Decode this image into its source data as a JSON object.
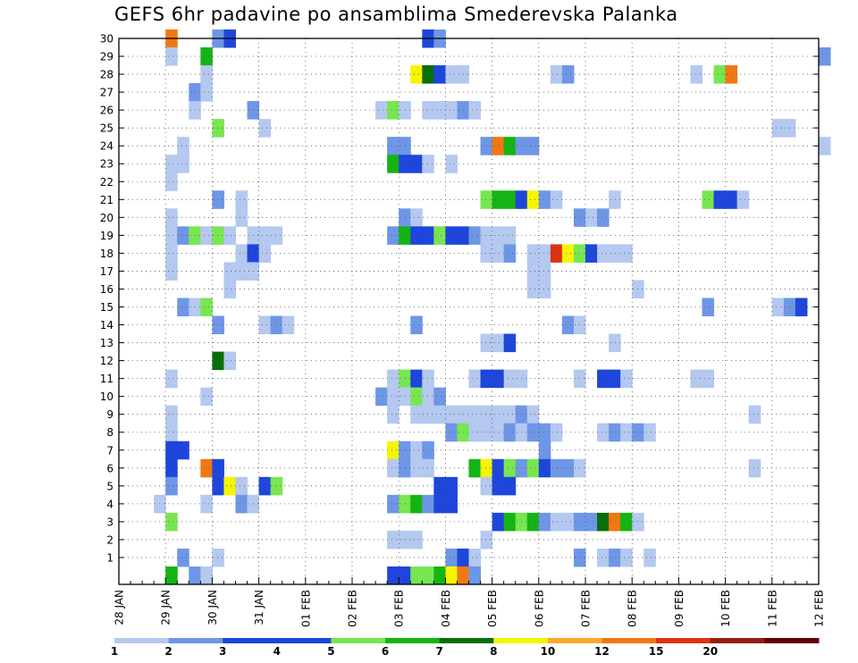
{
  "chart_data": {
    "type": "heatmap",
    "title": "GEFS 6hr padavine po ansamblima Smederevska Palanka",
    "xlabel": "",
    "ylabel": "",
    "x_tick_labels": [
      "28 JAN",
      "29 JAN",
      "30 JAN",
      "31 JAN",
      "01 FEB",
      "02 FEB",
      "03 FEB",
      "04 FEB",
      "05 FEB",
      "06 FEB",
      "07 FEB",
      "08 FEB",
      "09 FEB",
      "10 FEB",
      "11 FEB",
      "12 FEB"
    ],
    "x_range_steps": [
      0,
      60
    ],
    "steps_per_day": 4,
    "y_tick_labels": [
      "1",
      "2",
      "3",
      "4",
      "5",
      "6",
      "7",
      "8",
      "9",
      "10",
      "11",
      "12",
      "13",
      "14",
      "15",
      "16",
      "17",
      "18",
      "19",
      "20",
      "21",
      "22",
      "23",
      "24",
      "25",
      "26",
      "27",
      "28",
      "29",
      "30"
    ],
    "y_range": [
      0,
      30
    ],
    "grid": true,
    "legend_placement": "bottom",
    "color_classes": [
      {
        "label": "1",
        "color": "#b4c8f0"
      },
      {
        "label": "2",
        "color": "#6e96e6"
      },
      {
        "label": "3",
        "color": "#1e46dc"
      },
      {
        "label": "4",
        "color": "#1e46dc"
      },
      {
        "label": "5",
        "color": "#78e650"
      },
      {
        "label": "6",
        "color": "#14b414"
      },
      {
        "label": "7",
        "color": "#0a6e0a"
      },
      {
        "label": "8",
        "color": "#f5f500"
      },
      {
        "label": "10",
        "color": "#faaa32"
      },
      {
        "label": "12",
        "color": "#f07814"
      },
      {
        "label": "15",
        "color": "#dc3214"
      },
      {
        "label": "20",
        "color": "#961e14"
      },
      {
        "label": "",
        "color": "#64000a"
      }
    ],
    "cells_note": "each cell = [member, step, class]; step is 6-hour index from 28 JAN 00Z; class indexes color_classes",
    "cells": [
      [
        30,
        4,
        9
      ],
      [
        30,
        8,
        1
      ],
      [
        30,
        9,
        2
      ],
      [
        30,
        26,
        2
      ],
      [
        30,
        27,
        1
      ],
      [
        29,
        4,
        0
      ],
      [
        29,
        7,
        5
      ],
      [
        29,
        60,
        1
      ],
      [
        28,
        7,
        0
      ],
      [
        28,
        25,
        7
      ],
      [
        28,
        26,
        6
      ],
      [
        28,
        27,
        2
      ],
      [
        28,
        28,
        0
      ],
      [
        28,
        29,
        0
      ],
      [
        28,
        37,
        0
      ],
      [
        28,
        38,
        1
      ],
      [
        28,
        49,
        0
      ],
      [
        28,
        51,
        4
      ],
      [
        28,
        52,
        9
      ],
      [
        27,
        6,
        1
      ],
      [
        27,
        7,
        0
      ],
      [
        26,
        6,
        0
      ],
      [
        26,
        11,
        1
      ],
      [
        26,
        22,
        0
      ],
      [
        26,
        23,
        4
      ],
      [
        26,
        24,
        0
      ],
      [
        26,
        26,
        0
      ],
      [
        26,
        27,
        0
      ],
      [
        26,
        28,
        0
      ],
      [
        26,
        29,
        1
      ],
      [
        26,
        30,
        0
      ],
      [
        25,
        8,
        4
      ],
      [
        25,
        12,
        0
      ],
      [
        25,
        56,
        0
      ],
      [
        25,
        57,
        0
      ],
      [
        24,
        5,
        0
      ],
      [
        24,
        23,
        1
      ],
      [
        24,
        24,
        1
      ],
      [
        24,
        31,
        1
      ],
      [
        24,
        32,
        9
      ],
      [
        24,
        33,
        5
      ],
      [
        24,
        34,
        1
      ],
      [
        24,
        35,
        1
      ],
      [
        24,
        60,
        0
      ],
      [
        23,
        4,
        0
      ],
      [
        23,
        5,
        0
      ],
      [
        23,
        23,
        5
      ],
      [
        23,
        24,
        2
      ],
      [
        23,
        25,
        2
      ],
      [
        23,
        26,
        0
      ],
      [
        23,
        28,
        0
      ],
      [
        22,
        4,
        0
      ],
      [
        21,
        8,
        1
      ],
      [
        21,
        10,
        0
      ],
      [
        21,
        31,
        4
      ],
      [
        21,
        32,
        5
      ],
      [
        21,
        33,
        5
      ],
      [
        21,
        34,
        2
      ],
      [
        21,
        35,
        7
      ],
      [
        21,
        36,
        1
      ],
      [
        21,
        37,
        0
      ],
      [
        21,
        42,
        0
      ],
      [
        21,
        50,
        4
      ],
      [
        21,
        51,
        2
      ],
      [
        21,
        52,
        2
      ],
      [
        21,
        53,
        0
      ],
      [
        20,
        4,
        0
      ],
      [
        20,
        10,
        0
      ],
      [
        20,
        24,
        1
      ],
      [
        20,
        25,
        0
      ],
      [
        20,
        39,
        1
      ],
      [
        20,
        40,
        0
      ],
      [
        20,
        41,
        1
      ],
      [
        19,
        4,
        0
      ],
      [
        19,
        5,
        1
      ],
      [
        19,
        6,
        4
      ],
      [
        19,
        7,
        0
      ],
      [
        19,
        8,
        4
      ],
      [
        19,
        9,
        0
      ],
      [
        19,
        11,
        0
      ],
      [
        19,
        12,
        0
      ],
      [
        19,
        13,
        0
      ],
      [
        19,
        23,
        1
      ],
      [
        19,
        24,
        5
      ],
      [
        19,
        25,
        2
      ],
      [
        19,
        26,
        2
      ],
      [
        19,
        27,
        4
      ],
      [
        19,
        28,
        2
      ],
      [
        19,
        29,
        2
      ],
      [
        19,
        30,
        1
      ],
      [
        19,
        31,
        0
      ],
      [
        19,
        32,
        0
      ],
      [
        19,
        33,
        0
      ],
      [
        18,
        4,
        0
      ],
      [
        18,
        10,
        0
      ],
      [
        18,
        11,
        2
      ],
      [
        18,
        12,
        0
      ],
      [
        18,
        31,
        0
      ],
      [
        18,
        32,
        0
      ],
      [
        18,
        33,
        1
      ],
      [
        18,
        35,
        0
      ],
      [
        18,
        36,
        0
      ],
      [
        18,
        37,
        10
      ],
      [
        18,
        38,
        7
      ],
      [
        18,
        39,
        4
      ],
      [
        18,
        40,
        2
      ],
      [
        18,
        41,
        0
      ],
      [
        18,
        42,
        0
      ],
      [
        18,
        43,
        0
      ],
      [
        17,
        4,
        0
      ],
      [
        17,
        9,
        0
      ],
      [
        17,
        10,
        0
      ],
      [
        17,
        11,
        0
      ],
      [
        17,
        35,
        0
      ],
      [
        17,
        36,
        0
      ],
      [
        16,
        9,
        0
      ],
      [
        16,
        35,
        0
      ],
      [
        16,
        36,
        0
      ],
      [
        16,
        44,
        0
      ],
      [
        15,
        5,
        1
      ],
      [
        15,
        6,
        0
      ],
      [
        15,
        7,
        4
      ],
      [
        15,
        50,
        1
      ],
      [
        15,
        56,
        0
      ],
      [
        15,
        57,
        1
      ],
      [
        15,
        58,
        2
      ],
      [
        14,
        8,
        1
      ],
      [
        14,
        12,
        0
      ],
      [
        14,
        13,
        1
      ],
      [
        14,
        14,
        0
      ],
      [
        14,
        25,
        1
      ],
      [
        14,
        38,
        1
      ],
      [
        14,
        39,
        0
      ],
      [
        13,
        31,
        0
      ],
      [
        13,
        32,
        0
      ],
      [
        13,
        33,
        2
      ],
      [
        13,
        42,
        0
      ],
      [
        12,
        8,
        6
      ],
      [
        12,
        9,
        0
      ],
      [
        11,
        4,
        0
      ],
      [
        11,
        23,
        0
      ],
      [
        11,
        24,
        4
      ],
      [
        11,
        25,
        2
      ],
      [
        11,
        26,
        0
      ],
      [
        11,
        30,
        0
      ],
      [
        11,
        31,
        2
      ],
      [
        11,
        32,
        2
      ],
      [
        11,
        33,
        0
      ],
      [
        11,
        34,
        0
      ],
      [
        11,
        39,
        0
      ],
      [
        11,
        41,
        2
      ],
      [
        11,
        42,
        2
      ],
      [
        11,
        43,
        0
      ],
      [
        11,
        49,
        0
      ],
      [
        11,
        50,
        0
      ],
      [
        10,
        7,
        0
      ],
      [
        10,
        22,
        1
      ],
      [
        10,
        23,
        0
      ],
      [
        10,
        24,
        0
      ],
      [
        10,
        25,
        4
      ],
      [
        10,
        26,
        0
      ],
      [
        10,
        27,
        1
      ],
      [
        9,
        4,
        0
      ],
      [
        9,
        23,
        0
      ],
      [
        9,
        25,
        0
      ],
      [
        9,
        26,
        0
      ],
      [
        9,
        27,
        0
      ],
      [
        9,
        28,
        0
      ],
      [
        9,
        29,
        0
      ],
      [
        9,
        30,
        0
      ],
      [
        9,
        31,
        0
      ],
      [
        9,
        32,
        0
      ],
      [
        9,
        33,
        0
      ],
      [
        9,
        34,
        1
      ],
      [
        9,
        35,
        0
      ],
      [
        9,
        54,
        0
      ],
      [
        8,
        4,
        0
      ],
      [
        8,
        28,
        1
      ],
      [
        8,
        29,
        4
      ],
      [
        8,
        30,
        0
      ],
      [
        8,
        31,
        0
      ],
      [
        8,
        32,
        0
      ],
      [
        8,
        33,
        1
      ],
      [
        8,
        34,
        0
      ],
      [
        8,
        35,
        1
      ],
      [
        8,
        36,
        1
      ],
      [
        8,
        37,
        0
      ],
      [
        8,
        41,
        0
      ],
      [
        8,
        42,
        1
      ],
      [
        8,
        43,
        0
      ],
      [
        8,
        44,
        1
      ],
      [
        8,
        45,
        0
      ],
      [
        7,
        4,
        2
      ],
      [
        7,
        5,
        2
      ],
      [
        7,
        23,
        7
      ],
      [
        7,
        24,
        1
      ],
      [
        7,
        25,
        0
      ],
      [
        7,
        26,
        1
      ],
      [
        7,
        36,
        1
      ],
      [
        6,
        4,
        2
      ],
      [
        6,
        7,
        9
      ],
      [
        6,
        8,
        2
      ],
      [
        6,
        23,
        0
      ],
      [
        6,
        24,
        1
      ],
      [
        6,
        25,
        0
      ],
      [
        6,
        26,
        0
      ],
      [
        6,
        30,
        5
      ],
      [
        6,
        31,
        7
      ],
      [
        6,
        32,
        2
      ],
      [
        6,
        33,
        4
      ],
      [
        6,
        34,
        1
      ],
      [
        6,
        35,
        4
      ],
      [
        6,
        36,
        2
      ],
      [
        6,
        37,
        1
      ],
      [
        6,
        38,
        1
      ],
      [
        6,
        39,
        0
      ],
      [
        6,
        54,
        0
      ],
      [
        5,
        4,
        1
      ],
      [
        5,
        8,
        2
      ],
      [
        5,
        9,
        7
      ],
      [
        5,
        10,
        0
      ],
      [
        5,
        12,
        2
      ],
      [
        5,
        13,
        4
      ],
      [
        5,
        27,
        2
      ],
      [
        5,
        28,
        2
      ],
      [
        5,
        31,
        0
      ],
      [
        5,
        32,
        2
      ],
      [
        5,
        33,
        2
      ],
      [
        4,
        3,
        0
      ],
      [
        4,
        7,
        0
      ],
      [
        4,
        10,
        1
      ],
      [
        4,
        11,
        0
      ],
      [
        4,
        23,
        1
      ],
      [
        4,
        24,
        4
      ],
      [
        4,
        25,
        5
      ],
      [
        4,
        26,
        1
      ],
      [
        4,
        27,
        2
      ],
      [
        4,
        28,
        2
      ],
      [
        3,
        4,
        4
      ],
      [
        3,
        32,
        2
      ],
      [
        3,
        33,
        5
      ],
      [
        3,
        34,
        4
      ],
      [
        3,
        35,
        5
      ],
      [
        3,
        36,
        1
      ],
      [
        3,
        37,
        0
      ],
      [
        3,
        38,
        0
      ],
      [
        3,
        39,
        1
      ],
      [
        3,
        40,
        1
      ],
      [
        3,
        41,
        6
      ],
      [
        3,
        42,
        9
      ],
      [
        3,
        43,
        5
      ],
      [
        3,
        44,
        0
      ],
      [
        2,
        23,
        0
      ],
      [
        2,
        24,
        0
      ],
      [
        2,
        25,
        0
      ],
      [
        2,
        31,
        0
      ],
      [
        1,
        5,
        1
      ],
      [
        1,
        8,
        0
      ],
      [
        1,
        28,
        1
      ],
      [
        1,
        29,
        2
      ],
      [
        1,
        30,
        0
      ],
      [
        1,
        39,
        1
      ],
      [
        1,
        41,
        0
      ],
      [
        1,
        42,
        1
      ],
      [
        1,
        43,
        0
      ],
      [
        1,
        45,
        0
      ],
      [
        0,
        4,
        5
      ],
      [
        0,
        6,
        1
      ],
      [
        0,
        7,
        0
      ],
      [
        0,
        23,
        2
      ],
      [
        0,
        24,
        2
      ],
      [
        0,
        25,
        4
      ],
      [
        0,
        26,
        4
      ],
      [
        0,
        27,
        5
      ],
      [
        0,
        28,
        7
      ],
      [
        0,
        29,
        9
      ],
      [
        0,
        30,
        1
      ]
    ]
  }
}
